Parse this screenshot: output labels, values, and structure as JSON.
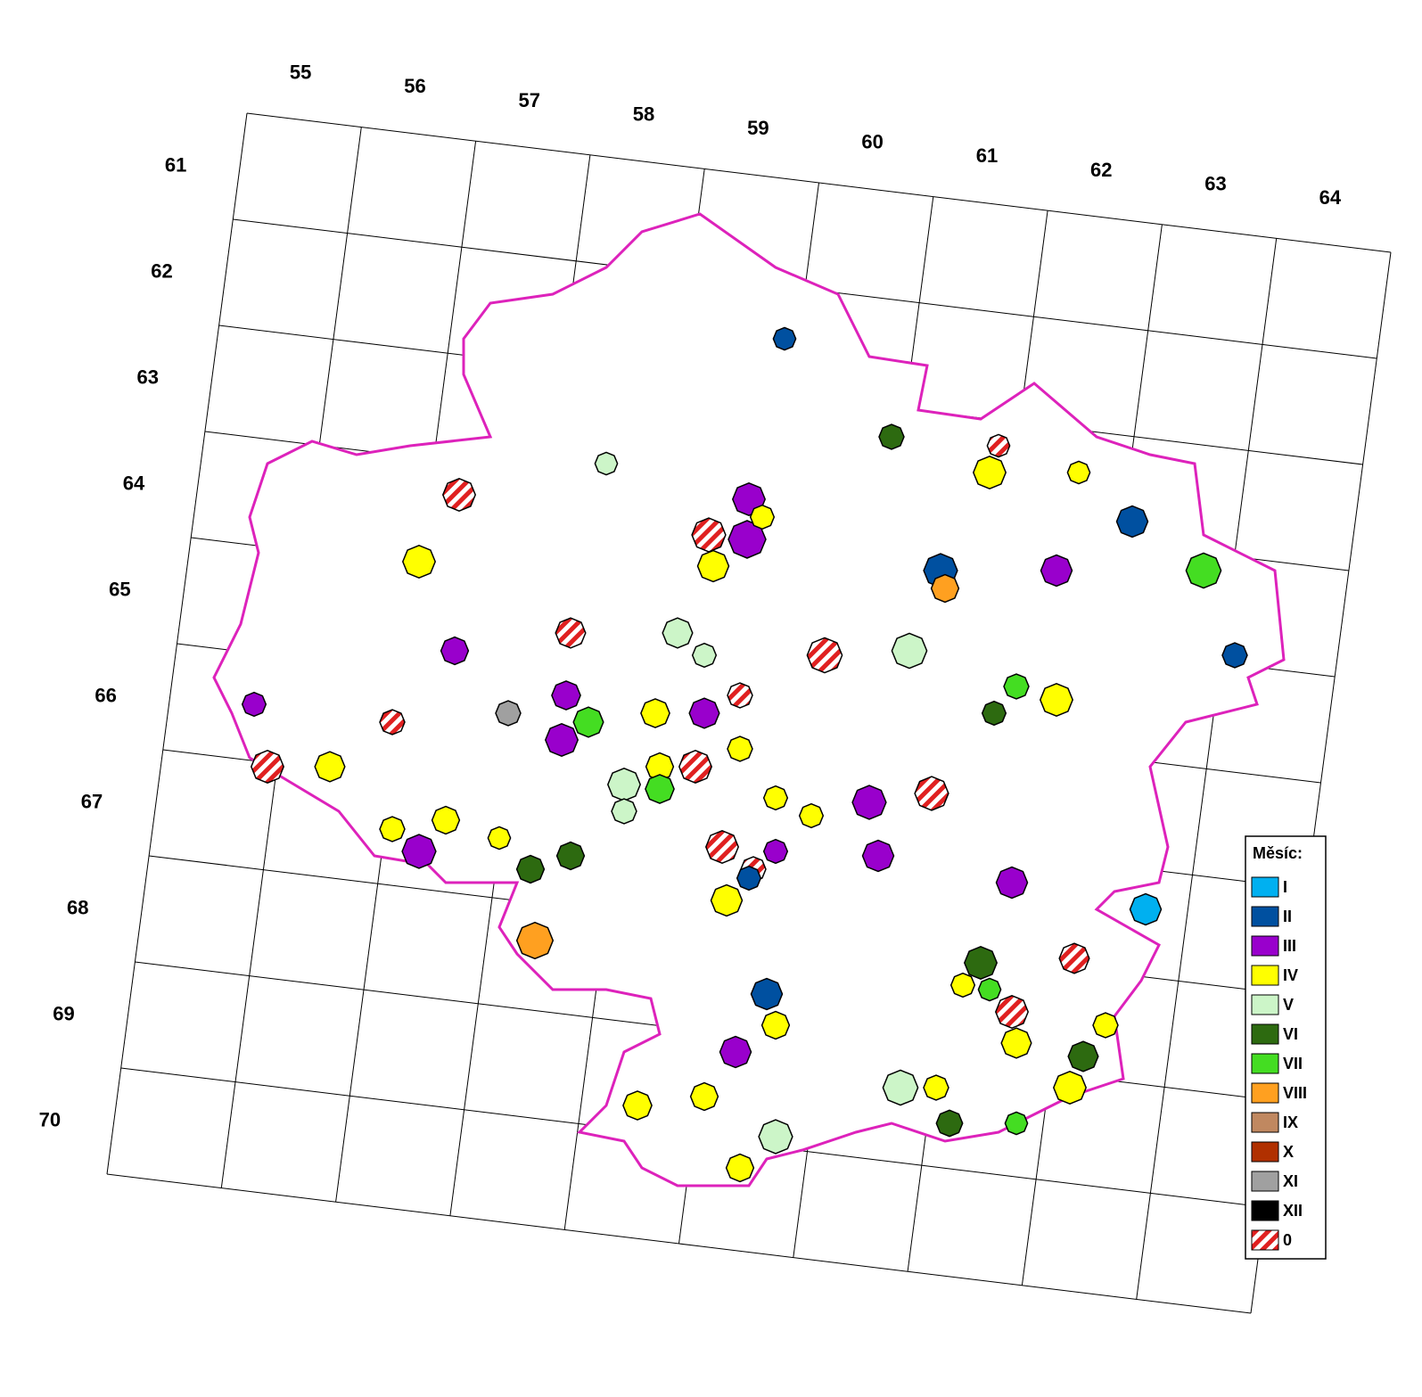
{
  "map": {
    "column_labels": [
      55,
      56,
      57,
      58,
      59,
      60,
      61,
      62,
      63,
      64
    ],
    "row_labels": [
      61,
      62,
      63,
      64,
      65,
      66,
      67,
      68,
      69,
      70
    ],
    "legend": {
      "title": "Měsíc:",
      "items": [
        {
          "label": "I",
          "color": "#00b0f0"
        },
        {
          "label": "II",
          "color": "#0050a0"
        },
        {
          "label": "III",
          "color": "#9900cc"
        },
        {
          "label": "IV",
          "color": "#ffff00"
        },
        {
          "label": "V",
          "color": "#ccf5c8"
        },
        {
          "label": "VI",
          "color": "#2d6a10"
        },
        {
          "label": "VII",
          "color": "#44dd22"
        },
        {
          "label": "VIII",
          "color": "#ffa020"
        },
        {
          "label": "IX",
          "color": "#c08860"
        },
        {
          "label": "X",
          "color": "#b03000"
        },
        {
          "label": "XI",
          "color": "#a0a0a0"
        },
        {
          "label": "XII",
          "color": "#000000"
        },
        {
          "label": "0",
          "color": "#e02020",
          "pattern": "stripes"
        }
      ]
    }
  }
}
